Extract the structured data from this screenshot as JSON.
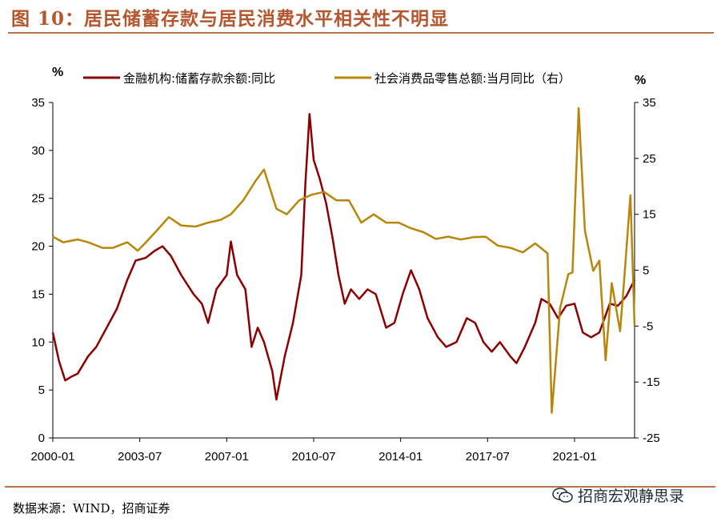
{
  "title": "图 10：居民储蓄存款与居民消费水平相关性不明显",
  "source": "数据来源：WIND，招商证券",
  "watermark": "招商宏观静思录",
  "chart_data": {
    "type": "line",
    "left_unit": "%",
    "right_unit": "%",
    "x_tick_labels": [
      "2000-01",
      "2003-07",
      "2007-01",
      "2010-07",
      "2014-01",
      "2017-07",
      "2021-01"
    ],
    "x_range": [
      "2000-01",
      "2023-06"
    ],
    "left_ylim": [
      0,
      35
    ],
    "left_yticks": [
      0,
      5,
      10,
      15,
      20,
      25,
      30,
      35
    ],
    "right_ylim": [
      -25,
      35
    ],
    "right_yticks": [
      -25,
      -15,
      -5,
      5,
      15,
      25,
      35
    ],
    "legend_placement": "top",
    "series": [
      {
        "name": "金融机构:储蓄存款余额:同比",
        "axis": "left",
        "color": "#8b0000",
        "points": [
          [
            "2000-01",
            11.0
          ],
          [
            "2000-04",
            8.0
          ],
          [
            "2000-07",
            6.0
          ],
          [
            "2000-10",
            6.4
          ],
          [
            "2001-01",
            6.7
          ],
          [
            "2001-06",
            8.5
          ],
          [
            "2001-10",
            9.5
          ],
          [
            "2002-03",
            11.5
          ],
          [
            "2002-08",
            13.5
          ],
          [
            "2003-01",
            16.5
          ],
          [
            "2003-05",
            18.5
          ],
          [
            "2003-10",
            18.8
          ],
          [
            "2004-02",
            19.5
          ],
          [
            "2004-06",
            20.0
          ],
          [
            "2004-10",
            19.0
          ],
          [
            "2005-03",
            17.0
          ],
          [
            "2005-09",
            15.0
          ],
          [
            "2006-01",
            14.0
          ],
          [
            "2006-04",
            12.0
          ],
          [
            "2006-08",
            15.5
          ],
          [
            "2007-01",
            17.0
          ],
          [
            "2007-03",
            20.5
          ],
          [
            "2007-06",
            17.0
          ],
          [
            "2007-10",
            15.5
          ],
          [
            "2008-01",
            9.5
          ],
          [
            "2008-04",
            11.5
          ],
          [
            "2008-07",
            10.0
          ],
          [
            "2008-11",
            7.0
          ],
          [
            "2009-01",
            4.0
          ],
          [
            "2009-05",
            8.5
          ],
          [
            "2009-09",
            12.0
          ],
          [
            "2010-01",
            17.0
          ],
          [
            "2010-03",
            26.5
          ],
          [
            "2010-05",
            33.8
          ],
          [
            "2010-07",
            29.0
          ],
          [
            "2010-10",
            27.0
          ],
          [
            "2011-01",
            24.5
          ],
          [
            "2011-04",
            21.0
          ],
          [
            "2011-07",
            17.0
          ],
          [
            "2011-10",
            14.0
          ],
          [
            "2012-01",
            15.5
          ],
          [
            "2012-05",
            14.5
          ],
          [
            "2012-09",
            15.5
          ],
          [
            "2013-01",
            15.0
          ],
          [
            "2013-06",
            11.5
          ],
          [
            "2013-10",
            12.0
          ],
          [
            "2014-02",
            15.0
          ],
          [
            "2014-06",
            17.5
          ],
          [
            "2014-10",
            15.5
          ],
          [
            "2015-02",
            12.5
          ],
          [
            "2015-07",
            10.5
          ],
          [
            "2015-11",
            9.5
          ],
          [
            "2016-04",
            10.0
          ],
          [
            "2016-09",
            12.5
          ],
          [
            "2017-01",
            12.0
          ],
          [
            "2017-05",
            10.0
          ],
          [
            "2017-09",
            9.0
          ],
          [
            "2018-01",
            10.0
          ],
          [
            "2018-06",
            8.5
          ],
          [
            "2018-09",
            7.8
          ],
          [
            "2019-01",
            9.5
          ],
          [
            "2019-06",
            12.0
          ],
          [
            "2019-09",
            14.5
          ],
          [
            "2020-01",
            14.0
          ],
          [
            "2020-05",
            12.5
          ],
          [
            "2020-09",
            13.8
          ],
          [
            "2021-01",
            14.0
          ],
          [
            "2021-05",
            11.0
          ],
          [
            "2021-09",
            10.5
          ],
          [
            "2022-01",
            11.0
          ],
          [
            "2022-06",
            14.0
          ],
          [
            "2022-10",
            13.8
          ],
          [
            "2023-02",
            14.8
          ],
          [
            "2023-06",
            16.5
          ]
        ]
      },
      {
        "name": "社会消费品零售总额:当月同比（右）",
        "axis": "right",
        "color": "#b8860b",
        "points": [
          [
            "2000-01",
            11.0
          ],
          [
            "2000-06",
            10.0
          ],
          [
            "2001-01",
            10.5
          ],
          [
            "2001-06",
            10.0
          ],
          [
            "2002-01",
            9.0
          ],
          [
            "2002-06",
            9.0
          ],
          [
            "2003-01",
            10.0
          ],
          [
            "2003-06",
            8.5
          ],
          [
            "2003-10",
            10.0
          ],
          [
            "2004-03",
            12.0
          ],
          [
            "2004-09",
            14.5
          ],
          [
            "2005-03",
            13.0
          ],
          [
            "2005-10",
            12.8
          ],
          [
            "2006-04",
            13.5
          ],
          [
            "2006-10",
            14.0
          ],
          [
            "2007-03",
            15.0
          ],
          [
            "2007-09",
            17.5
          ],
          [
            "2008-03",
            21.0
          ],
          [
            "2008-07",
            23.0
          ],
          [
            "2009-01",
            16.0
          ],
          [
            "2009-06",
            15.0
          ],
          [
            "2009-12",
            17.5
          ],
          [
            "2010-06",
            18.5
          ],
          [
            "2010-12",
            19.0
          ],
          [
            "2011-06",
            17.5
          ],
          [
            "2011-12",
            17.5
          ],
          [
            "2012-06",
            13.5
          ],
          [
            "2012-12",
            15.0
          ],
          [
            "2013-06",
            13.5
          ],
          [
            "2013-12",
            13.5
          ],
          [
            "2014-06",
            12.5
          ],
          [
            "2014-12",
            11.8
          ],
          [
            "2015-06",
            10.6
          ],
          [
            "2015-12",
            11.0
          ],
          [
            "2016-06",
            10.5
          ],
          [
            "2016-12",
            10.9
          ],
          [
            "2017-06",
            11.0
          ],
          [
            "2017-12",
            9.4
          ],
          [
            "2018-06",
            9.0
          ],
          [
            "2018-12",
            8.2
          ],
          [
            "2019-06",
            9.8
          ],
          [
            "2019-12",
            8.0
          ],
          [
            "2020-02",
            -20.5
          ],
          [
            "2020-06",
            -1.8
          ],
          [
            "2020-10",
            4.3
          ],
          [
            "2020-12",
            4.6
          ],
          [
            "2021-03",
            34.0
          ],
          [
            "2021-06",
            12.1
          ],
          [
            "2021-10",
            4.9
          ],
          [
            "2022-01",
            6.7
          ],
          [
            "2022-04",
            -11.1
          ],
          [
            "2022-07",
            2.7
          ],
          [
            "2022-11",
            -5.9
          ],
          [
            "2023-01",
            3.5
          ],
          [
            "2023-04",
            18.4
          ],
          [
            "2023-06",
            -5.0
          ]
        ]
      }
    ]
  }
}
